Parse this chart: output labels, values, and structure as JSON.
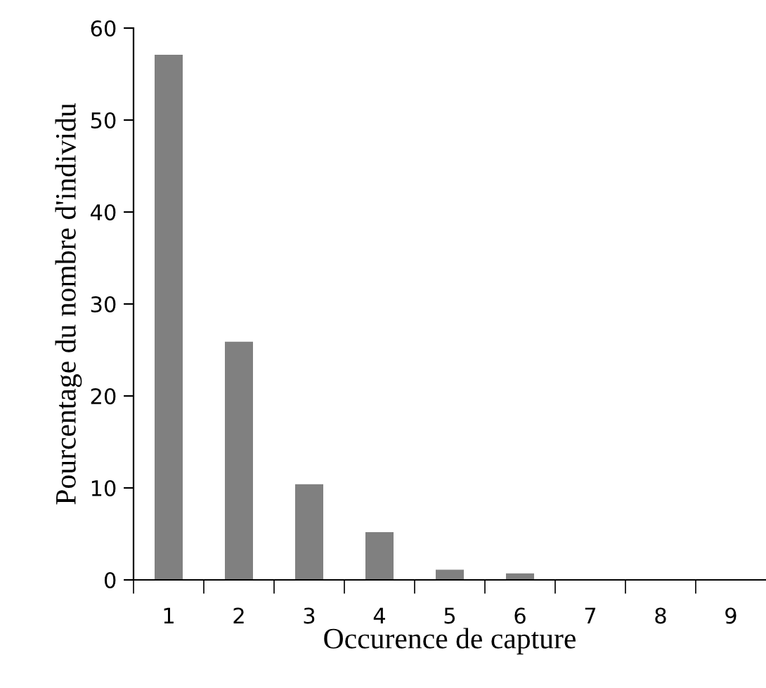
{
  "chart_data": {
    "type": "bar",
    "categories": [
      "1",
      "2",
      "3",
      "4",
      "5",
      "6",
      "7",
      "8",
      "9"
    ],
    "values": [
      57.1,
      25.9,
      10.4,
      5.2,
      1.1,
      0.7,
      0,
      0,
      0
    ],
    "color": "#808080",
    "xlabel": "Occurence de capture",
    "ylabel": "Pourcentage du nombre d'individu",
    "ylim": [
      0,
      60
    ],
    "yticks": [
      0,
      10,
      20,
      30,
      40,
      50,
      60
    ],
    "grid": false,
    "legend": false
  }
}
